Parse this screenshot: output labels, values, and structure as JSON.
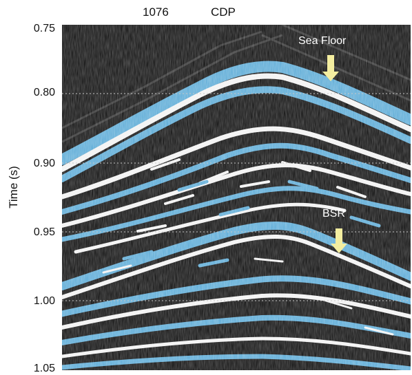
{
  "header": {
    "trace_number": "1076",
    "axis_name": "CDP"
  },
  "y_axis": {
    "label": "Time (s)",
    "ticks": [
      "0.75",
      "0.80",
      "0.90",
      "0.95",
      "1.00",
      "1.05"
    ]
  },
  "annotations": {
    "sea_floor": "Sea Floor",
    "bsr": "BSR"
  },
  "colors": {
    "background": "#0b0b0b",
    "reflector_blue": "#5aaad6",
    "reflector_white": "#f2f2f2",
    "arrow_yellow": "#f4eea0",
    "gridline": "#c8c8c8"
  }
}
